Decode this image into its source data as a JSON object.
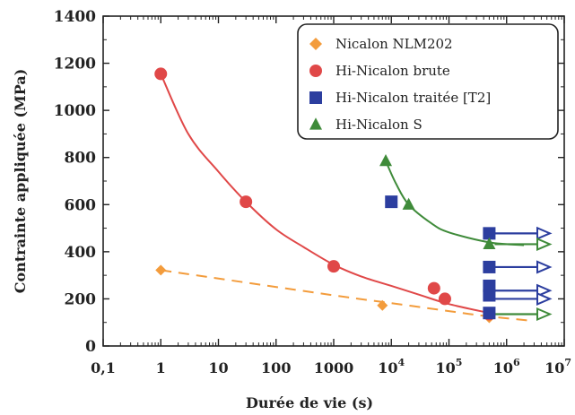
{
  "chart_data": {
    "type": "scatter",
    "xlabel": "Durée de vie (s)",
    "ylabel": "Contrainte appliquée (MPa)",
    "xscale": "log",
    "xlim": [
      0.1,
      10000000
    ],
    "ylim": [
      0,
      1400
    ],
    "y_ticks": [
      "0",
      "200",
      "400",
      "600",
      "800",
      "1000",
      "1200",
      "1400"
    ],
    "x_ticks": [
      {
        "base": "0,1",
        "exp": ""
      },
      {
        "base": "1",
        "exp": ""
      },
      {
        "base": "10",
        "exp": ""
      },
      {
        "base": "100",
        "exp": ""
      },
      {
        "base": "1000",
        "exp": ""
      },
      {
        "base": "10",
        "exp": "4"
      },
      {
        "base": "10",
        "exp": "5"
      },
      {
        "base": "10",
        "exp": "6"
      },
      {
        "base": "10",
        "exp": "7"
      }
    ],
    "legend_position": "top-right",
    "series": [
      {
        "name": "Nicalon NLM202",
        "color": "#f39c3c",
        "marker": "diamond",
        "points": [
          [
            1,
            322
          ],
          [
            7000,
            172
          ],
          [
            500000,
            120
          ]
        ],
        "fit": {
          "style": "dashed",
          "points": [
            [
              1,
              322
            ],
            [
              1000,
              215
            ],
            [
              10000,
              182
            ],
            [
              100000,
              148
            ],
            [
              400000,
              128
            ],
            [
              2500000,
              108
            ]
          ]
        }
      },
      {
        "name": "Hi-Nicalon brute",
        "color": "#e04848",
        "marker": "circle",
        "points": [
          [
            1,
            1155
          ],
          [
            30,
            612
          ],
          [
            1000,
            338
          ],
          [
            55000,
            245
          ],
          [
            85000,
            200
          ],
          [
            500000,
            135
          ]
        ],
        "fit": {
          "style": "solid",
          "points": [
            [
              1,
              1155
            ],
            [
              3,
              900
            ],
            [
              10,
              740
            ],
            [
              30,
              612
            ],
            [
              100,
              495
            ],
            [
              300,
              420
            ],
            [
              1000,
              345
            ],
            [
              3000,
              295
            ],
            [
              10000,
              255
            ],
            [
              30000,
              218
            ],
            [
              100000,
              178
            ],
            [
              500000,
              140
            ]
          ]
        }
      },
      {
        "name": "Hi-Nicalon traitée [T2]",
        "color": "#2c3e9f",
        "marker": "square",
        "points": [
          [
            10000,
            612
          ],
          [
            500000,
            478
          ],
          [
            500000,
            335
          ],
          [
            500000,
            255
          ],
          [
            500000,
            215
          ],
          [
            500000,
            140
          ]
        ],
        "runouts": [
          [
            500000,
            478
          ],
          [
            500000,
            335
          ],
          [
            500000,
            235
          ],
          [
            500000,
            200
          ]
        ]
      },
      {
        "name": "Hi-Nicalon S",
        "color": "#3f8b3a",
        "marker": "triangle",
        "points": [
          [
            8000,
            785
          ],
          [
            20000,
            600
          ],
          [
            500000,
            432
          ]
        ],
        "fit": {
          "style": "solid",
          "points": [
            [
              8000,
              785
            ],
            [
              12000,
              690
            ],
            [
              20000,
              600
            ],
            [
              50000,
              520
            ],
            [
              100000,
              482
            ],
            [
              500000,
              440
            ],
            [
              2000000,
              428
            ]
          ]
        },
        "runouts": [
          [
            500000,
            432
          ],
          [
            500000,
            135
          ]
        ]
      }
    ]
  }
}
